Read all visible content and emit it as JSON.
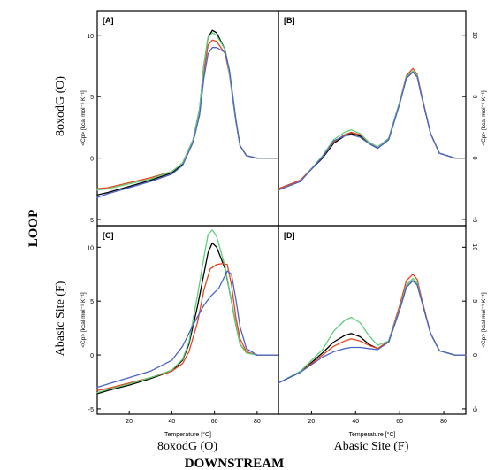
{
  "labels": {
    "row_label": "LOOP",
    "col_label": "DOWNSTREAM",
    "row_top": "8oxodG (O)",
    "row_bottom": "Abasic Site (F)",
    "col_left": "8oxodG (O)",
    "col_right": "Abasic Site (F)",
    "y_axis_label": "<Cp> [kcal mol⁻¹ K⁻¹]",
    "x_axis_label": "Temperature [°C]"
  },
  "colors": {
    "black": "#000000",
    "red": "#e8431e",
    "green": "#5fcf7a",
    "blue": "#4b63c8"
  },
  "chart_data": [
    {
      "type": "line",
      "panel_label": "[A]",
      "xlim": [
        5,
        90
      ],
      "ylim": [
        -5.5,
        12
      ],
      "xticks": [
        20,
        40,
        60,
        80
      ],
      "yticks": [
        -5,
        0,
        5,
        10
      ],
      "series": [
        {
          "color": "black",
          "x": [
            5,
            10,
            20,
            30,
            40,
            45,
            50,
            53,
            55,
            57,
            59,
            61,
            63,
            65,
            67,
            70,
            72,
            75,
            80,
            90
          ],
          "y": [
            -3.0,
            -2.8,
            -2.3,
            -1.8,
            -1.2,
            -0.5,
            1.5,
            4.0,
            7.5,
            9.8,
            10.4,
            10.2,
            9.5,
            8.8,
            7.0,
            3.0,
            1.0,
            0.2,
            0.0,
            0.0
          ]
        },
        {
          "color": "red",
          "x": [
            5,
            10,
            20,
            30,
            40,
            45,
            50,
            53,
            55,
            57,
            59,
            61,
            63,
            65,
            67,
            70,
            72,
            75,
            80,
            90
          ],
          "y": [
            -2.5,
            -2.4,
            -2.0,
            -1.6,
            -1.1,
            -0.4,
            1.5,
            3.8,
            7.0,
            9.2,
            9.6,
            9.5,
            9.0,
            8.5,
            6.8,
            3.0,
            1.0,
            0.2,
            0.0,
            0.0
          ]
        },
        {
          "color": "green",
          "x": [
            5,
            10,
            20,
            30,
            40,
            45,
            50,
            53,
            55,
            57,
            59,
            61,
            63,
            65,
            67,
            70,
            72,
            75,
            80,
            90
          ],
          "y": [
            -2.6,
            -2.5,
            -2.1,
            -1.7,
            -1.1,
            -0.4,
            1.5,
            4.0,
            7.5,
            9.8,
            10.2,
            10.0,
            9.4,
            8.8,
            6.9,
            3.0,
            1.0,
            0.2,
            0.0,
            0.0
          ]
        },
        {
          "color": "blue",
          "x": [
            5,
            10,
            20,
            30,
            40,
            45,
            50,
            53,
            55,
            57,
            59,
            61,
            63,
            65,
            67,
            70,
            72,
            75,
            80,
            90
          ],
          "y": [
            -3.2,
            -2.9,
            -2.4,
            -1.9,
            -1.3,
            -0.6,
            1.3,
            3.5,
            6.5,
            8.5,
            9.0,
            9.0,
            8.8,
            8.6,
            7.2,
            3.2,
            1.0,
            0.2,
            0.0,
            0.0
          ]
        }
      ]
    },
    {
      "type": "line",
      "panel_label": "[B]",
      "xlim": [
        5,
        90
      ],
      "ylim": [
        -5.5,
        12
      ],
      "xticks": [
        20,
        40,
        60,
        80
      ],
      "yticks": [
        -5,
        0,
        5,
        10
      ],
      "series": [
        {
          "color": "black",
          "x": [
            5,
            15,
            25,
            30,
            35,
            38,
            42,
            46,
            50,
            55,
            60,
            63,
            66,
            68,
            70,
            74,
            78,
            85,
            90
          ],
          "y": [
            -2.5,
            -1.8,
            0.0,
            1.2,
            1.8,
            2.0,
            1.8,
            1.2,
            0.8,
            1.5,
            4.5,
            6.5,
            7.0,
            6.6,
            5.0,
            2.0,
            0.4,
            0.0,
            0.0
          ]
        },
        {
          "color": "red",
          "x": [
            5,
            15,
            25,
            30,
            35,
            38,
            42,
            46,
            50,
            55,
            60,
            63,
            66,
            68,
            70,
            74,
            78,
            85,
            90
          ],
          "y": [
            -2.5,
            -1.8,
            0.1,
            1.3,
            1.9,
            2.1,
            1.9,
            1.3,
            0.9,
            1.6,
            4.6,
            6.7,
            7.3,
            6.8,
            5.1,
            2.0,
            0.4,
            0.0,
            0.0
          ]
        },
        {
          "color": "green",
          "x": [
            5,
            15,
            25,
            30,
            35,
            38,
            42,
            46,
            50,
            55,
            60,
            63,
            66,
            68,
            70,
            74,
            78,
            85,
            90
          ],
          "y": [
            -2.6,
            -1.9,
            0.2,
            1.5,
            2.1,
            2.3,
            2.0,
            1.3,
            0.9,
            1.6,
            4.6,
            6.6,
            7.1,
            6.7,
            5.0,
            2.0,
            0.4,
            0.0,
            0.0
          ]
        },
        {
          "color": "blue",
          "x": [
            5,
            15,
            25,
            30,
            35,
            38,
            42,
            46,
            50,
            55,
            60,
            63,
            66,
            68,
            70,
            74,
            78,
            85,
            90
          ],
          "y": [
            -2.6,
            -1.9,
            0.1,
            1.4,
            1.8,
            1.9,
            1.7,
            1.2,
            0.8,
            1.5,
            4.4,
            6.5,
            7.0,
            6.6,
            5.0,
            2.0,
            0.4,
            0.0,
            0.0
          ]
        }
      ]
    },
    {
      "type": "line",
      "panel_label": "[C]",
      "xlim": [
        5,
        90
      ],
      "ylim": [
        -5.5,
        12
      ],
      "xticks": [
        20,
        40,
        60,
        80
      ],
      "yticks": [
        -5,
        0,
        5,
        10
      ],
      "series": [
        {
          "color": "black",
          "x": [
            5,
            10,
            20,
            30,
            40,
            45,
            48,
            52,
            55,
            57,
            59,
            61,
            63,
            65,
            67,
            70,
            72,
            75,
            80,
            90
          ],
          "y": [
            -3.6,
            -3.3,
            -2.8,
            -2.2,
            -1.5,
            -0.5,
            1.0,
            4.5,
            7.5,
            9.5,
            10.4,
            10.0,
            9.0,
            8.0,
            6.0,
            2.8,
            1.0,
            0.2,
            0.0,
            0.0
          ]
        },
        {
          "color": "red",
          "x": [
            5,
            10,
            20,
            30,
            40,
            45,
            48,
            52,
            55,
            58,
            61,
            64,
            66,
            68,
            70,
            72,
            75,
            80,
            90
          ],
          "y": [
            -3.3,
            -3.1,
            -2.6,
            -2.1,
            -1.5,
            -0.8,
            0.3,
            3.0,
            6.0,
            8.0,
            8.4,
            8.5,
            8.4,
            6.5,
            3.5,
            1.5,
            0.3,
            0.0,
            0.0
          ]
        },
        {
          "color": "green",
          "x": [
            5,
            10,
            20,
            30,
            40,
            45,
            48,
            52,
            55,
            57,
            59,
            61,
            63,
            65,
            67,
            70,
            72,
            75,
            80,
            90
          ],
          "y": [
            -3.5,
            -3.2,
            -2.7,
            -2.1,
            -1.4,
            -0.4,
            1.2,
            5.5,
            9.0,
            11.2,
            11.6,
            11.0,
            9.6,
            8.2,
            6.0,
            2.8,
            1.0,
            0.2,
            0.0,
            0.0
          ]
        },
        {
          "color": "blue",
          "x": [
            5,
            10,
            20,
            30,
            40,
            45,
            50,
            55,
            58,
            62,
            66,
            68,
            70,
            72,
            75,
            80,
            90
          ],
          "y": [
            -3.0,
            -2.7,
            -2.1,
            -1.5,
            -0.5,
            0.8,
            2.8,
            4.6,
            5.4,
            6.2,
            7.8,
            7.5,
            5.2,
            2.6,
            0.6,
            0.0,
            0.0
          ]
        }
      ]
    },
    {
      "type": "line",
      "panel_label": "[D]",
      "xlim": [
        5,
        90
      ],
      "ylim": [
        -5.5,
        12
      ],
      "xticks": [
        20,
        40,
        60,
        80
      ],
      "yticks": [
        -5,
        0,
        5,
        10
      ],
      "series": [
        {
          "color": "black",
          "x": [
            5,
            15,
            25,
            30,
            35,
            38,
            42,
            46,
            50,
            55,
            60,
            63,
            66,
            68,
            70,
            74,
            78,
            85,
            90
          ],
          "y": [
            -2.6,
            -1.6,
            0.2,
            1.2,
            1.8,
            2.0,
            1.7,
            1.0,
            0.6,
            1.2,
            4.2,
            6.3,
            6.9,
            6.5,
            5.0,
            2.0,
            0.4,
            0.0,
            0.0
          ]
        },
        {
          "color": "red",
          "x": [
            5,
            15,
            25,
            30,
            35,
            38,
            42,
            46,
            50,
            55,
            60,
            63,
            66,
            68,
            70,
            74,
            78,
            85,
            90
          ],
          "y": [
            -2.6,
            -1.6,
            0.0,
            0.8,
            1.3,
            1.5,
            1.3,
            0.9,
            0.6,
            1.3,
            4.6,
            6.9,
            7.5,
            7.0,
            5.2,
            2.0,
            0.4,
            0.0,
            0.0
          ]
        },
        {
          "color": "green",
          "x": [
            5,
            15,
            25,
            30,
            35,
            38,
            42,
            46,
            50,
            55,
            60,
            63,
            66,
            68,
            70,
            74,
            78,
            85,
            90
          ],
          "y": [
            -2.6,
            -1.5,
            0.5,
            2.2,
            3.2,
            3.5,
            3.0,
            1.8,
            0.9,
            1.3,
            4.3,
            6.5,
            7.1,
            6.7,
            5.0,
            2.0,
            0.4,
            0.0,
            0.0
          ]
        },
        {
          "color": "blue",
          "x": [
            5,
            15,
            25,
            30,
            35,
            38,
            42,
            46,
            50,
            55,
            60,
            63,
            66,
            68,
            70,
            74,
            78,
            85,
            90
          ],
          "y": [
            -2.6,
            -1.6,
            -0.2,
            0.3,
            0.6,
            0.7,
            0.7,
            0.6,
            0.5,
            1.2,
            4.2,
            6.3,
            6.9,
            6.5,
            5.0,
            2.0,
            0.4,
            0.0,
            0.0
          ]
        }
      ]
    }
  ]
}
